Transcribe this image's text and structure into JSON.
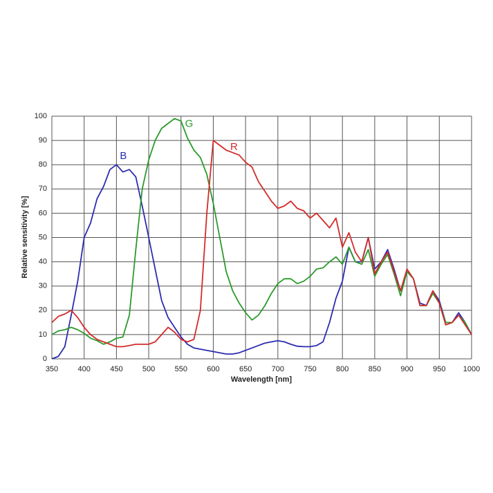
{
  "chart_data": {
    "type": "line",
    "xlabel": "Wavelength [nm]",
    "ylabel": "Relative sensitivity [%]",
    "x": [
      350,
      360,
      370,
      380,
      390,
      400,
      410,
      420,
      430,
      440,
      450,
      460,
      470,
      480,
      490,
      500,
      510,
      520,
      530,
      540,
      550,
      560,
      570,
      580,
      590,
      600,
      610,
      620,
      630,
      640,
      650,
      660,
      670,
      680,
      690,
      700,
      710,
      720,
      730,
      740,
      750,
      760,
      770,
      780,
      790,
      800,
      810,
      820,
      830,
      840,
      850,
      860,
      870,
      880,
      890,
      900,
      910,
      920,
      930,
      940,
      950,
      960,
      970,
      980,
      990,
      1000
    ],
    "series": [
      {
        "name": "B",
        "color": "#2b2bb0",
        "values": [
          0,
          1,
          5,
          18,
          32,
          50,
          56,
          66,
          71,
          78,
          80,
          77,
          78,
          75,
          63,
          50,
          37,
          24,
          17,
          13,
          9,
          6,
          4.5,
          4,
          3.5,
          3,
          2.5,
          2,
          2,
          2.5,
          3.5,
          4.5,
          5.5,
          6.5,
          7,
          7.5,
          7,
          6,
          5.2,
          5,
          5,
          5.5,
          7,
          15,
          25,
          32,
          46,
          40,
          40,
          50,
          37,
          40,
          45,
          37,
          28,
          36,
          33,
          23,
          22,
          28,
          24,
          15,
          15,
          19,
          15,
          10
        ]
      },
      {
        "name": "G",
        "color": "#2a9a2a",
        "values": [
          10,
          11.5,
          12,
          13,
          12,
          10.5,
          8.5,
          7.5,
          6,
          7,
          8.5,
          9,
          18,
          45,
          70,
          82,
          90,
          95,
          97,
          99,
          98,
          91,
          86,
          83,
          76,
          64,
          50,
          36,
          28,
          23,
          19,
          16,
          18,
          22,
          27,
          31,
          33,
          33,
          31,
          32,
          34,
          37,
          37.5,
          40,
          42,
          39,
          46,
          40,
          39,
          45,
          34,
          39,
          43,
          35,
          26,
          36,
          33,
          22,
          22,
          27,
          23,
          15,
          15,
          18,
          15,
          10
        ]
      },
      {
        "name": "R",
        "color": "#d42a2a",
        "values": [
          15,
          17.5,
          18.5,
          20,
          17,
          13,
          10,
          8,
          7,
          6,
          5,
          5,
          5.5,
          6,
          6,
          6,
          7,
          10,
          13,
          11,
          8,
          7,
          8,
          20,
          60,
          90,
          88,
          86,
          85,
          84,
          81,
          79,
          73,
          69,
          65,
          62,
          63,
          65,
          62,
          61,
          58,
          60,
          57,
          54,
          58,
          46,
          52,
          44,
          40,
          50,
          35,
          40,
          44,
          36,
          28,
          37,
          33,
          22,
          22,
          28,
          23,
          14,
          15,
          18,
          14,
          10
        ]
      }
    ],
    "xlim": [
      350,
      1000
    ],
    "ylim": [
      0,
      100
    ],
    "xticks": [
      350,
      400,
      450,
      500,
      550,
      600,
      650,
      700,
      750,
      800,
      850,
      900,
      950,
      1000
    ],
    "yticks": [
      0,
      10,
      20,
      30,
      40,
      50,
      60,
      70,
      80,
      90,
      100
    ],
    "grid": true
  }
}
